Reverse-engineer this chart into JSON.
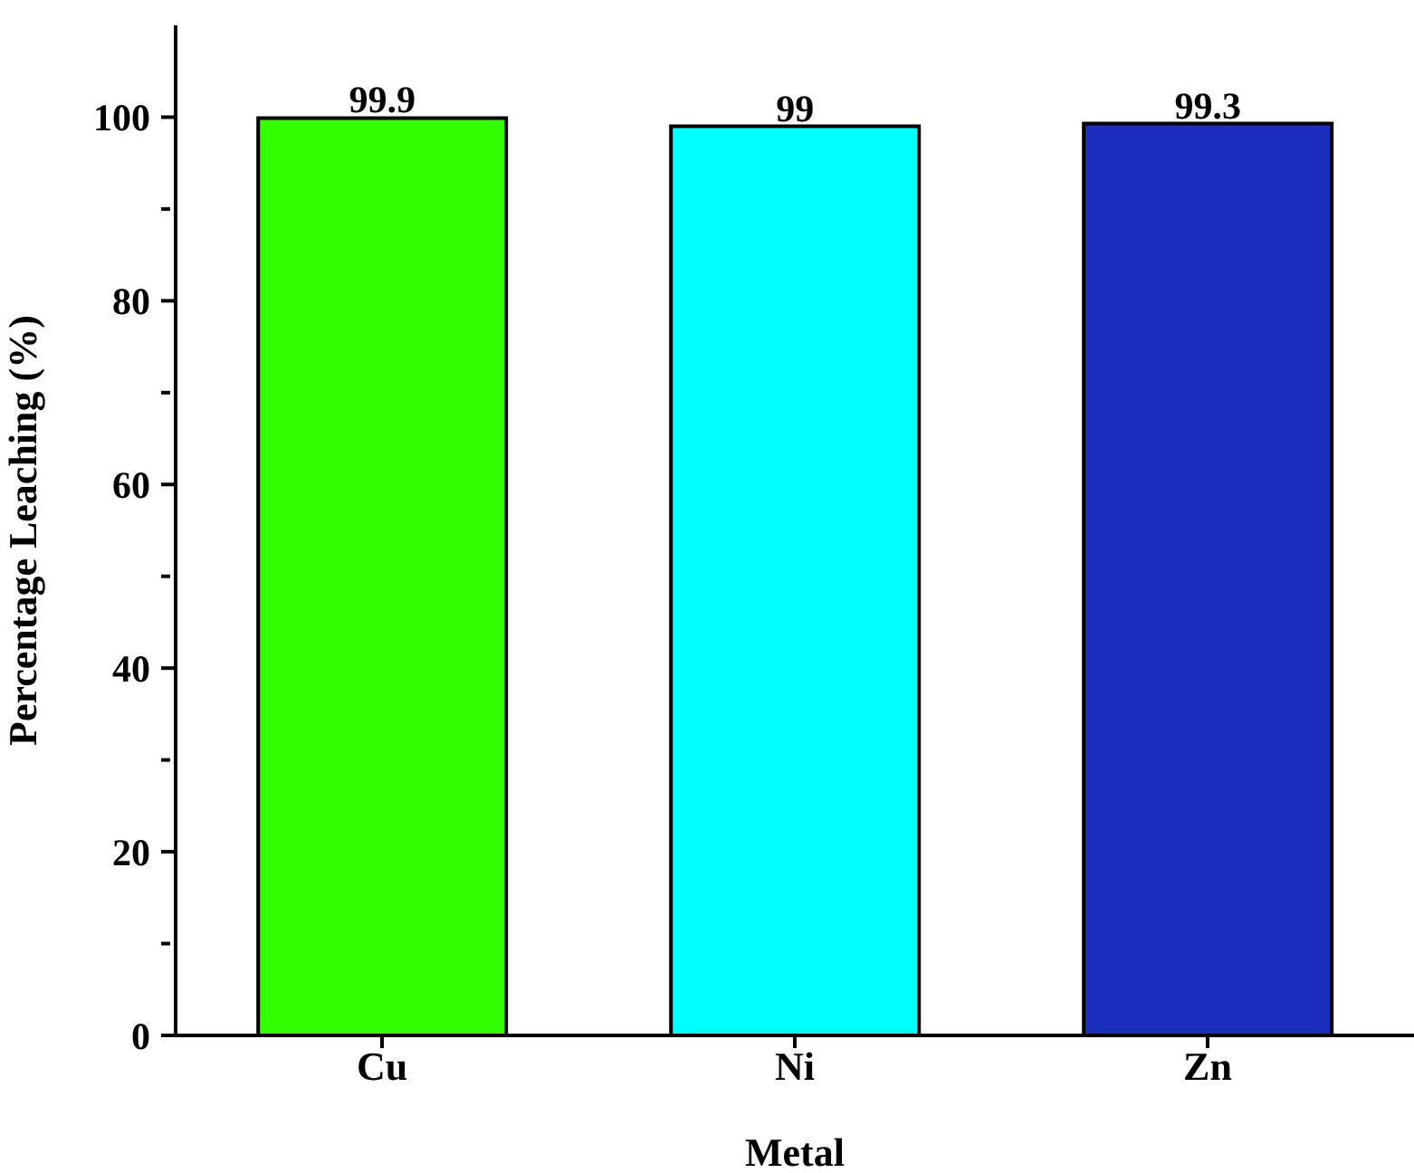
{
  "chart_data": {
    "type": "bar",
    "xlabel": "Metal",
    "ylabel": "Percentage Leaching (%)",
    "categories": [
      "Cu",
      "Ni",
      "Zn"
    ],
    "values": [
      99.9,
      99,
      99.3
    ],
    "colors": [
      "#33ff00",
      "#00ffff",
      "#1c2ebe"
    ],
    "ylim": [
      0,
      110
    ],
    "yticks": [
      0,
      {
        "value": 10,
        "label": null
      },
      20,
      {
        "value": 30,
        "label": null
      },
      40,
      {
        "value": 50,
        "label": null
      },
      60,
      {
        "value": 70,
        "label": null
      },
      80,
      {
        "value": 90,
        "label": null
      },
      100
    ],
    "data_labels": true
  }
}
